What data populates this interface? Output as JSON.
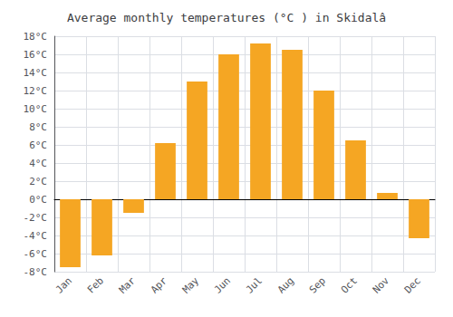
{
  "chart_data": {
    "type": "bar",
    "title": "Average monthly temperatures (°C ) in Skidalâ",
    "categories": [
      "Jan",
      "Feb",
      "Mar",
      "Apr",
      "May",
      "Jun",
      "Jul",
      "Aug",
      "Sep",
      "Oct",
      "Nov",
      "Dec"
    ],
    "values": [
      -7.5,
      -6.2,
      -1.5,
      6.2,
      13.0,
      16.0,
      17.2,
      16.5,
      12.0,
      6.5,
      0.7,
      -4.3
    ],
    "color": "#F5A623",
    "ylim": [
      -8,
      18
    ],
    "yticks": [
      {
        "value": -8,
        "label": "-8°C"
      },
      {
        "value": -6,
        "label": "-6°C"
      },
      {
        "value": -4,
        "label": "-4°C"
      },
      {
        "value": -2,
        "label": "-2°C"
      },
      {
        "value": 0,
        "label": "0°C"
      },
      {
        "value": 2,
        "label": "2°C"
      },
      {
        "value": 4,
        "label": "4°C"
      },
      {
        "value": 6,
        "label": "6°C"
      },
      {
        "value": 8,
        "label": "8°C"
      },
      {
        "value": 10,
        "label": "10°C"
      },
      {
        "value": 12,
        "label": "12°C"
      },
      {
        "value": 14,
        "label": "14°C"
      },
      {
        "value": 16,
        "label": "16°C"
      },
      {
        "value": 18,
        "label": "18°C"
      }
    ],
    "grid": true
  }
}
